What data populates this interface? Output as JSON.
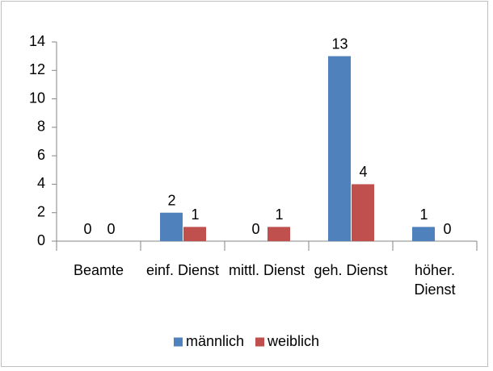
{
  "chart_data": {
    "type": "bar",
    "categories": [
      "Beamte",
      "einf. Dienst",
      "mittl. Dienst",
      "geh. Dienst",
      "höher. Dienst"
    ],
    "series": [
      {
        "name": "männlich",
        "color": "#4f81bd",
        "values": [
          0,
          2,
          0,
          13,
          1
        ]
      },
      {
        "name": "weiblich",
        "color": "#c0504d",
        "values": [
          0,
          1,
          1,
          4,
          0
        ]
      }
    ],
    "ylim": [
      0,
      14
    ],
    "yticks": [
      0,
      2,
      4,
      6,
      8,
      10,
      12,
      14
    ],
    "grid": false,
    "legend": "bottom"
  }
}
